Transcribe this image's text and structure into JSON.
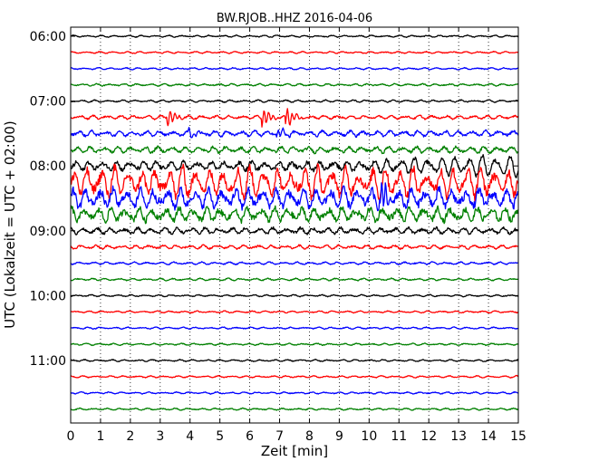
{
  "chart_data": {
    "type": "line",
    "title": "BW.RJOB..HHZ 2016-04-06",
    "xlabel": "Zeit  [min]",
    "ylabel": "UTC (Lokalzeit = UTC + 02:00)",
    "xlim": [
      0,
      15
    ],
    "x_ticks": [
      "0",
      "1",
      "2",
      "3",
      "4",
      "5",
      "6",
      "7",
      "8",
      "9",
      "10",
      "11",
      "12",
      "13",
      "14",
      "15"
    ],
    "y_ticks": [
      "06:00",
      "07:00",
      "08:00",
      "09:00",
      "10:00",
      "11:00"
    ],
    "grid": true,
    "trace_interval_min": 15,
    "trace_colors": [
      "#000000",
      "#ff0000",
      "#0000ff",
      "#008000"
    ],
    "series": [
      {
        "start": "06:00",
        "amplitude": 0.06,
        "event": null
      },
      {
        "start": "06:15",
        "amplitude": 0.06,
        "event": null
      },
      {
        "start": "06:30",
        "amplitude": 0.06,
        "event": null
      },
      {
        "start": "06:45",
        "amplitude": 0.07,
        "event": null
      },
      {
        "start": "07:00",
        "amplitude": 0.07,
        "event": null
      },
      {
        "start": "07:15",
        "amplitude": 0.12,
        "event": {
          "bursts_min": [
            3.3,
            6.5,
            7.3
          ],
          "peak": 0.55
        }
      },
      {
        "start": "07:30",
        "amplitude": 0.18,
        "event": {
          "bursts_min": [
            4.0,
            7.0
          ],
          "peak": 0.3
        }
      },
      {
        "start": "07:45",
        "amplitude": 0.2,
        "event": null
      },
      {
        "start": "08:00",
        "amplitude": 0.3,
        "event": {
          "growth_min": 9.0,
          "peak": 0.75
        }
      },
      {
        "start": "08:15",
        "amplitude": 0.7,
        "event": {
          "peak": 1.1
        }
      },
      {
        "start": "08:30",
        "amplitude": 0.6,
        "event": {
          "bursts_min": [
            10.5
          ],
          "peak": 0.9
        }
      },
      {
        "start": "08:45",
        "amplitude": 0.45,
        "event": null
      },
      {
        "start": "09:00",
        "amplitude": 0.2,
        "event": null
      },
      {
        "start": "09:15",
        "amplitude": 0.12,
        "event": null
      },
      {
        "start": "09:30",
        "amplitude": 0.08,
        "event": null
      },
      {
        "start": "09:45",
        "amplitude": 0.07,
        "event": null
      },
      {
        "start": "10:00",
        "amplitude": 0.06,
        "event": null
      },
      {
        "start": "10:15",
        "amplitude": 0.06,
        "event": null
      },
      {
        "start": "10:30",
        "amplitude": 0.06,
        "event": null
      },
      {
        "start": "10:45",
        "amplitude": 0.06,
        "event": null
      },
      {
        "start": "11:00",
        "amplitude": 0.06,
        "event": null
      },
      {
        "start": "11:15",
        "amplitude": 0.06,
        "event": null
      },
      {
        "start": "11:30",
        "amplitude": 0.06,
        "event": null
      },
      {
        "start": "11:45",
        "amplitude": 0.06,
        "event": null
      }
    ]
  }
}
